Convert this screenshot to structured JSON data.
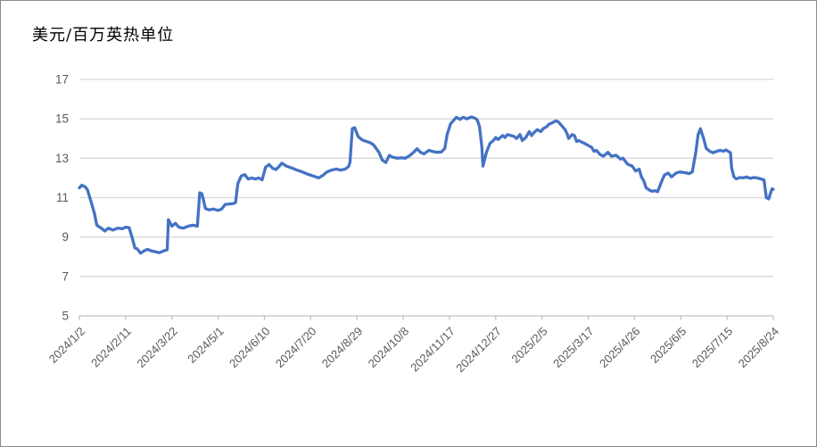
{
  "chart_data": {
    "type": "line",
    "title": "美元/百万英热单位",
    "xlabel": "",
    "ylabel": "",
    "ylim": [
      5,
      17
    ],
    "yticks": [
      5,
      7,
      9,
      11,
      13,
      15,
      17
    ],
    "grid": "horizontal",
    "legend": "none",
    "x_axis_note": "points x = day offset from 2024/1/2; tick labels every 40 days, rotated 45 degrees",
    "xtick_days": [
      0,
      40,
      80,
      120,
      160,
      200,
      240,
      280,
      320,
      360,
      400,
      440,
      480,
      520,
      560,
      600
    ],
    "xtick_labels": [
      "2024/1/2",
      "2024/2/11",
      "2024/3/22",
      "2024/5/1",
      "2024/6/10",
      "2024/7/20",
      "2024/8/29",
      "2024/10/8",
      "2024/11/17",
      "2024/12/27",
      "2025/2/5",
      "2025/3/17",
      "2025/4/26",
      "2025/6/5",
      "2025/7/15",
      "2025/8/24"
    ],
    "colors": {
      "line": "#4472C4",
      "gridline": "#D9D9D9",
      "axis_line": "#BFBFBF",
      "tick_label": "#595959",
      "title_text": "#000000",
      "frame_border": "#8a8a8a"
    },
    "points": [
      [
        0,
        11.5
      ],
      [
        2,
        11.63
      ],
      [
        5,
        11.55
      ],
      [
        7,
        11.4
      ],
      [
        10,
        10.8
      ],
      [
        13,
        10.2
      ],
      [
        15,
        9.6
      ],
      [
        19,
        9.45
      ],
      [
        22,
        9.3
      ],
      [
        25,
        9.45
      ],
      [
        29,
        9.35
      ],
      [
        33,
        9.45
      ],
      [
        37,
        9.42
      ],
      [
        40,
        9.5
      ],
      [
        43,
        9.48
      ],
      [
        46,
        8.9
      ],
      [
        48,
        8.45
      ],
      [
        50,
        8.4
      ],
      [
        53,
        8.18
      ],
      [
        56,
        8.3
      ],
      [
        59,
        8.38
      ],
      [
        62,
        8.3
      ],
      [
        66,
        8.25
      ],
      [
        69,
        8.2
      ],
      [
        73,
        8.3
      ],
      [
        76,
        8.35
      ],
      [
        77,
        9.88
      ],
      [
        80,
        9.55
      ],
      [
        83,
        9.7
      ],
      [
        86,
        9.5
      ],
      [
        90,
        9.45
      ],
      [
        94,
        9.55
      ],
      [
        98,
        9.6
      ],
      [
        102,
        9.55
      ],
      [
        104,
        11.25
      ],
      [
        106,
        11.2
      ],
      [
        109,
        10.45
      ],
      [
        112,
        10.38
      ],
      [
        116,
        10.42
      ],
      [
        120,
        10.35
      ],
      [
        123,
        10.42
      ],
      [
        126,
        10.65
      ],
      [
        130,
        10.68
      ],
      [
        133,
        10.7
      ],
      [
        135,
        10.75
      ],
      [
        137,
        11.7
      ],
      [
        140,
        12.1
      ],
      [
        143,
        12.17
      ],
      [
        146,
        11.94
      ],
      [
        149,
        12.0
      ],
      [
        152,
        11.94
      ],
      [
        155,
        12.0
      ],
      [
        158,
        11.9
      ],
      [
        161,
        12.55
      ],
      [
        164,
        12.68
      ],
      [
        167,
        12.5
      ],
      [
        170,
        12.42
      ],
      [
        173,
        12.6
      ],
      [
        175,
        12.75
      ],
      [
        179,
        12.6
      ],
      [
        184,
        12.5
      ],
      [
        188,
        12.4
      ],
      [
        193,
        12.3
      ],
      [
        197,
        12.2
      ],
      [
        202,
        12.1
      ],
      [
        207,
        12.0
      ],
      [
        211,
        12.15
      ],
      [
        214,
        12.3
      ],
      [
        218,
        12.4
      ],
      [
        222,
        12.45
      ],
      [
        226,
        12.4
      ],
      [
        230,
        12.45
      ],
      [
        233,
        12.6
      ],
      [
        234,
        12.8
      ],
      [
        236,
        14.5
      ],
      [
        238,
        14.55
      ],
      [
        241,
        14.1
      ],
      [
        244,
        13.95
      ],
      [
        247,
        13.87
      ],
      [
        251,
        13.8
      ],
      [
        254,
        13.7
      ],
      [
        256,
        13.55
      ],
      [
        259,
        13.3
      ],
      [
        262,
        12.9
      ],
      [
        265,
        12.78
      ],
      [
        268,
        13.14
      ],
      [
        271,
        13.05
      ],
      [
        275,
        13.0
      ],
      [
        278,
        13.02
      ],
      [
        282,
        13.0
      ],
      [
        286,
        13.15
      ],
      [
        289,
        13.3
      ],
      [
        292,
        13.48
      ],
      [
        295,
        13.3
      ],
      [
        298,
        13.22
      ],
      [
        302,
        13.4
      ],
      [
        305,
        13.35
      ],
      [
        309,
        13.3
      ],
      [
        313,
        13.32
      ],
      [
        316,
        13.5
      ],
      [
        318,
        14.2
      ],
      [
        321,
        14.75
      ],
      [
        324,
        14.95
      ],
      [
        326,
        15.08
      ],
      [
        329,
        14.97
      ],
      [
        332,
        15.08
      ],
      [
        335,
        15.0
      ],
      [
        339,
        15.1
      ],
      [
        342,
        15.03
      ],
      [
        344,
        14.95
      ],
      [
        346,
        14.6
      ],
      [
        348,
        13.6
      ],
      [
        349,
        12.6
      ],
      [
        352,
        13.3
      ],
      [
        355,
        13.75
      ],
      [
        358,
        13.9
      ],
      [
        360,
        14.05
      ],
      [
        362,
        13.95
      ],
      [
        366,
        14.15
      ],
      [
        368,
        14.05
      ],
      [
        370,
        14.2
      ],
      [
        373,
        14.15
      ],
      [
        376,
        14.1
      ],
      [
        378,
        14.0
      ],
      [
        381,
        14.2
      ],
      [
        383,
        13.9
      ],
      [
        386,
        14.05
      ],
      [
        389,
        14.35
      ],
      [
        391,
        14.15
      ],
      [
        393,
        14.3
      ],
      [
        396,
        14.45
      ],
      [
        399,
        14.35
      ],
      [
        401,
        14.5
      ],
      [
        404,
        14.6
      ],
      [
        406,
        14.72
      ],
      [
        409,
        14.8
      ],
      [
        412,
        14.9
      ],
      [
        414,
        14.85
      ],
      [
        416,
        14.72
      ],
      [
        420,
        14.45
      ],
      [
        422,
        14.2
      ],
      [
        423,
        14.0
      ],
      [
        426,
        14.2
      ],
      [
        428,
        14.15
      ],
      [
        430,
        13.85
      ],
      [
        432,
        13.9
      ],
      [
        435,
        13.8
      ],
      [
        437,
        13.75
      ],
      [
        440,
        13.65
      ],
      [
        443,
        13.55
      ],
      [
        445,
        13.35
      ],
      [
        447,
        13.4
      ],
      [
        450,
        13.2
      ],
      [
        453,
        13.1
      ],
      [
        457,
        13.3
      ],
      [
        460,
        13.1
      ],
      [
        464,
        13.15
      ],
      [
        468,
        12.95
      ],
      [
        470,
        13.0
      ],
      [
        474,
        12.7
      ],
      [
        478,
        12.6
      ],
      [
        481,
        12.35
      ],
      [
        484,
        12.45
      ],
      [
        486,
        12.05
      ],
      [
        488,
        11.85
      ],
      [
        490,
        11.5
      ],
      [
        493,
        11.38
      ],
      [
        495,
        11.32
      ],
      [
        498,
        11.35
      ],
      [
        500,
        11.3
      ],
      [
        504,
        11.9
      ],
      [
        506,
        12.15
      ],
      [
        509,
        12.25
      ],
      [
        512,
        12.05
      ],
      [
        516,
        12.25
      ],
      [
        519,
        12.3
      ],
      [
        522,
        12.28
      ],
      [
        525,
        12.25
      ],
      [
        527,
        12.22
      ],
      [
        530,
        12.3
      ],
      [
        533,
        13.3
      ],
      [
        535,
        14.2
      ],
      [
        537,
        14.5
      ],
      [
        540,
        13.95
      ],
      [
        542,
        13.5
      ],
      [
        545,
        13.35
      ],
      [
        548,
        13.28
      ],
      [
        551,
        13.35
      ],
      [
        554,
        13.4
      ],
      [
        557,
        13.35
      ],
      [
        559,
        13.42
      ],
      [
        561,
        13.35
      ],
      [
        563,
        13.28
      ],
      [
        564,
        12.5
      ],
      [
        566,
        12.05
      ],
      [
        568,
        11.95
      ],
      [
        571,
        12.02
      ],
      [
        574,
        12.0
      ],
      [
        577,
        12.05
      ],
      [
        580,
        11.98
      ],
      [
        583,
        12.02
      ],
      [
        586,
        12.0
      ],
      [
        589,
        11.95
      ],
      [
        592,
        11.9
      ],
      [
        594,
        11.0
      ],
      [
        596,
        10.93
      ],
      [
        598,
        11.3
      ],
      [
        599,
        11.45
      ],
      [
        600,
        11.42
      ]
    ]
  }
}
